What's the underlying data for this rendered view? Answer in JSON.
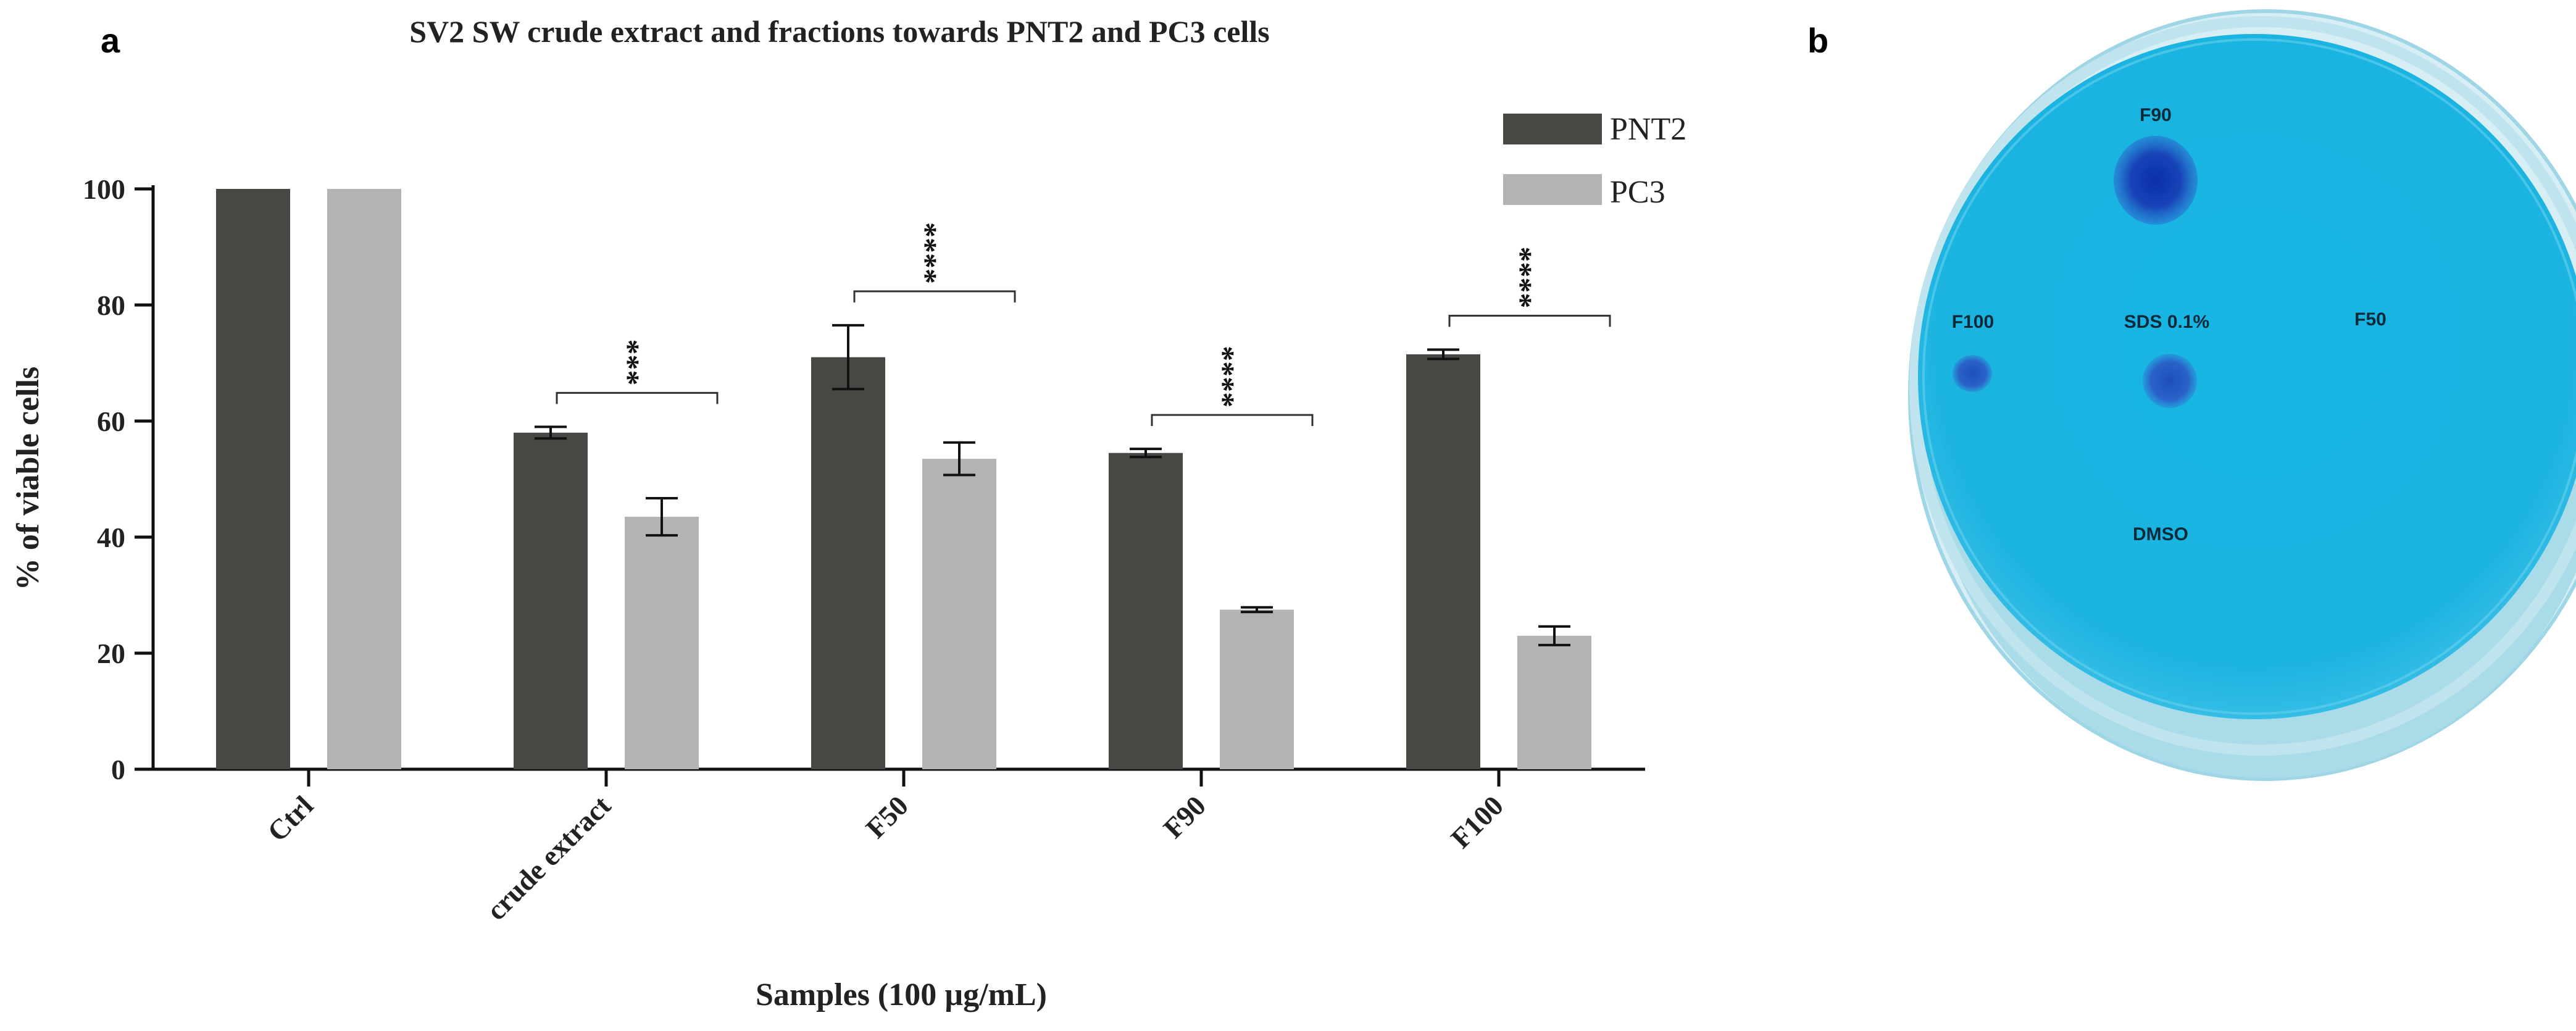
{
  "panel_a_label": "a",
  "panel_b_label": "b",
  "chart_data": {
    "type": "bar",
    "title": "SV2 SW crude extract and fractions towards PNT2 and PC3 cells",
    "xlabel": "Samples (100 µg/mL)",
    "ylabel": "% of viable cells",
    "ylim": [
      0,
      100
    ],
    "yticks": [
      "0",
      "20",
      "40",
      "60",
      "80",
      "100"
    ],
    "categories": [
      "Ctrl",
      "crude extract",
      "F50",
      "F90",
      "F100"
    ],
    "series": [
      {
        "name": "PNT2",
        "color": "#474743",
        "values": [
          100,
          58,
          71,
          54.5,
          71.5
        ],
        "errors": [
          0,
          1,
          5.5,
          0.7,
          0.8
        ]
      },
      {
        "name": "PC3",
        "color": "#b3b3b3",
        "values": [
          100,
          43.5,
          53.5,
          27.5,
          23
        ],
        "errors": [
          0,
          3.2,
          2.8,
          0.4,
          1.6
        ]
      }
    ],
    "significance": [
      {
        "category": "crude extract",
        "label": "***"
      },
      {
        "category": "F50",
        "label": "****"
      },
      {
        "category": "F90",
        "label": "****"
      },
      {
        "category": "F100",
        "label": "****"
      }
    ],
    "legend_position": "top-right"
  },
  "plate": {
    "background": "#19b5e2",
    "spots": [
      {
        "label": "F90",
        "zone": "strong"
      },
      {
        "label": "F100",
        "zone": "small"
      },
      {
        "label": "SDS 0.1%",
        "zone": "medium"
      },
      {
        "label": "F50",
        "zone": "none"
      },
      {
        "label": "DMSO",
        "zone": "none"
      }
    ]
  }
}
